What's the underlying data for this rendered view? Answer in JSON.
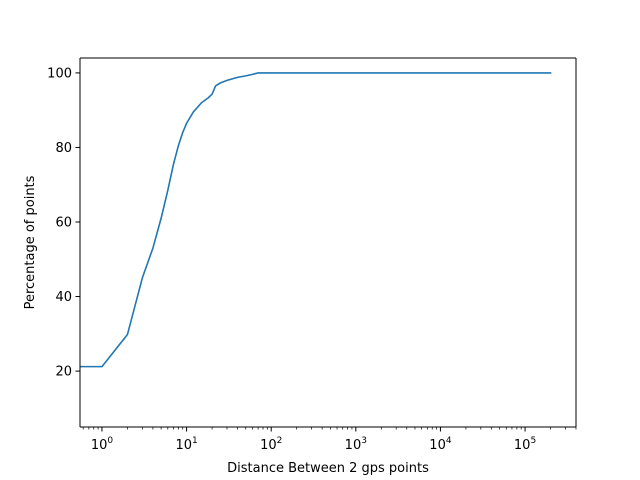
{
  "chart_data": {
    "type": "line",
    "title": "",
    "xlabel": "Distance Between 2 gps points",
    "ylabel": "Percentage of points",
    "x_scale": "log",
    "xlim": [
      0.55,
      400000
    ],
    "ylim": [
      5,
      104
    ],
    "grid": false,
    "legend": "none",
    "x_ticks": [
      {
        "value": 1,
        "base": "10",
        "exp": "0"
      },
      {
        "value": 10,
        "base": "10",
        "exp": "1"
      },
      {
        "value": 100,
        "base": "10",
        "exp": "2"
      },
      {
        "value": 1000,
        "base": "10",
        "exp": "3"
      },
      {
        "value": 10000,
        "base": "10",
        "exp": "4"
      },
      {
        "value": 100000,
        "base": "10",
        "exp": "5"
      }
    ],
    "y_ticks": [
      {
        "value": 20,
        "label": "20"
      },
      {
        "value": 40,
        "label": "40"
      },
      {
        "value": 60,
        "label": "60"
      },
      {
        "value": 80,
        "label": "80"
      },
      {
        "value": 100,
        "label": "100"
      }
    ],
    "series": [
      {
        "color": "#1f77b4",
        "x": [
          0.5,
          1,
          2,
          3,
          4,
          5,
          6,
          7,
          8,
          9,
          10,
          12,
          15,
          18,
          20,
          22,
          25,
          30,
          40,
          50,
          60,
          70,
          100,
          1000,
          10000,
          100000,
          200000
        ],
        "y": [
          21.2,
          21.2,
          29.8,
          45.0,
          53.0,
          61.0,
          68.5,
          75.5,
          80.5,
          84.0,
          86.5,
          89.5,
          92.0,
          93.3,
          94.3,
          96.5,
          97.3,
          98.0,
          98.8,
          99.2,
          99.6,
          100.0,
          100.0,
          100.0,
          100.0,
          100.0,
          100.0
        ]
      }
    ]
  }
}
